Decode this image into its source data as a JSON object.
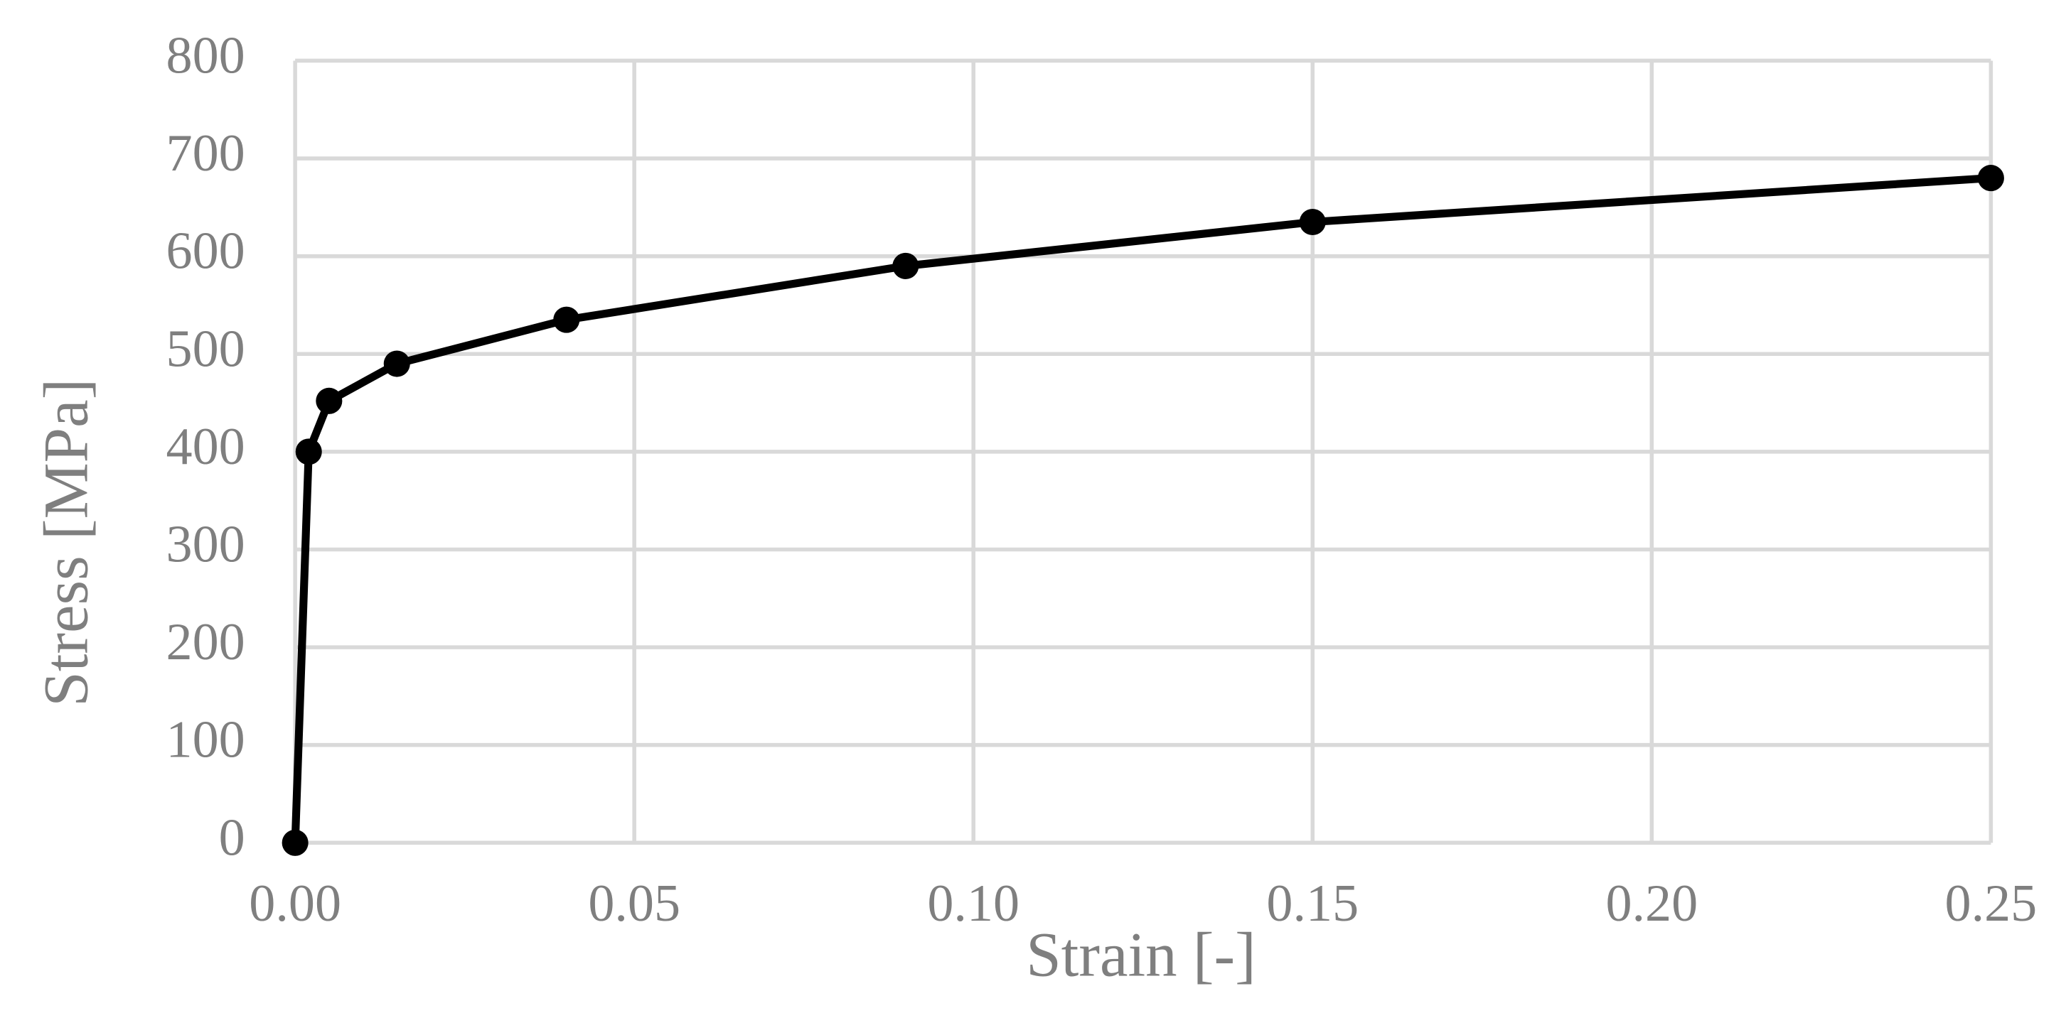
{
  "chart_data": {
    "type": "line",
    "x_label": "Strain [-]",
    "y_label": "Stress [MPa]",
    "x": [
      0,
      0.002,
      0.005,
      0.015,
      0.04,
      0.09,
      0.15,
      0.25
    ],
    "series": [
      {
        "color": "#000000",
        "values": [
          0,
          400,
          452,
          490,
          535,
          590,
          635,
          680
        ]
      }
    ],
    "xlim": [
      0,
      0.25
    ],
    "xticks": [
      {
        "value": 0,
        "label": "0.00"
      },
      0.05,
      {
        "value": 0.1,
        "label": "0.10"
      },
      0.15,
      {
        "value": 0.2,
        "label": "0.20"
      },
      0.25
    ],
    "ylim": [
      0,
      800
    ],
    "yticks": [
      0,
      100,
      200,
      300,
      400,
      500,
      600,
      700,
      800
    ],
    "grid": true
  }
}
